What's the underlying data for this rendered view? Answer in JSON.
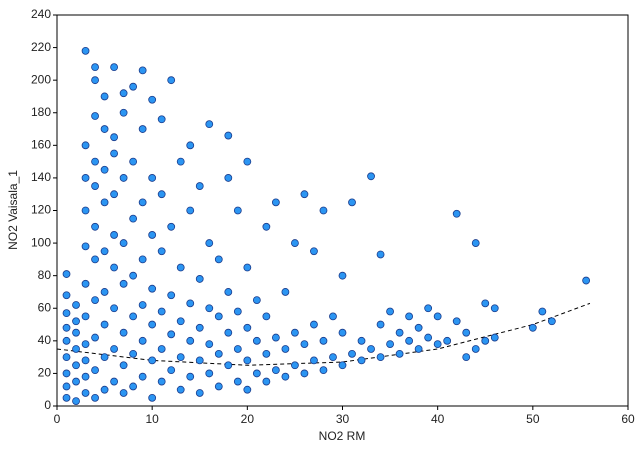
{
  "chart_data": {
    "type": "scatter",
    "x_label": "NO2 RM",
    "y_label": "NO2 Vaisala_1",
    "xlim": [
      0,
      60
    ],
    "ylim": [
      0,
      240
    ],
    "xticks": [
      0,
      10,
      20,
      30,
      40,
      50,
      60
    ],
    "yticks": [
      0,
      20,
      40,
      60,
      80,
      100,
      120,
      140,
      160,
      180,
      200,
      220,
      240
    ],
    "grid": false,
    "series": [
      {
        "color": "#2b95f2",
        "edge_color": "#1b3c8c",
        "x": [
          1,
          1,
          1,
          1,
          1,
          1,
          1,
          1,
          1,
          2,
          2,
          2,
          2,
          2,
          2,
          2,
          3,
          3,
          3,
          3,
          3,
          3,
          3,
          3,
          3,
          3,
          3,
          4,
          4,
          4,
          4,
          4,
          4,
          4,
          4,
          4,
          4,
          4,
          5,
          5,
          5,
          5,
          5,
          5,
          5,
          5,
          5,
          6,
          6,
          6,
          6,
          6,
          6,
          6,
          6,
          6,
          7,
          7,
          7,
          7,
          7,
          7,
          7,
          7,
          8,
          8,
          8,
          8,
          8,
          8,
          8,
          9,
          9,
          9,
          9,
          9,
          9,
          9,
          10,
          10,
          10,
          10,
          10,
          10,
          10,
          11,
          11,
          11,
          11,
          11,
          11,
          12,
          12,
          12,
          12,
          12,
          13,
          13,
          13,
          13,
          13,
          14,
          14,
          14,
          14,
          14,
          15,
          15,
          15,
          15,
          15,
          16,
          16,
          16,
          16,
          16,
          17,
          17,
          17,
          17,
          18,
          18,
          18,
          18,
          18,
          19,
          19,
          19,
          19,
          20,
          20,
          20,
          20,
          20,
          21,
          21,
          21,
          22,
          22,
          22,
          22,
          23,
          23,
          23,
          24,
          24,
          24,
          25,
          25,
          25,
          26,
          26,
          26,
          27,
          27,
          27,
          28,
          28,
          28,
          29,
          29,
          30,
          30,
          30,
          31,
          31,
          32,
          32,
          33,
          33,
          34,
          34,
          34,
          35,
          35,
          36,
          36,
          37,
          37,
          38,
          38,
          39,
          39,
          40,
          40,
          41,
          42,
          42,
          43,
          43,
          44,
          44,
          45,
          45,
          46,
          46,
          50,
          51,
          52,
          55.6
        ],
        "values": [
          5,
          12,
          20,
          30,
          40,
          48,
          57,
          68,
          81,
          3,
          15,
          25,
          35,
          45,
          52,
          62,
          8,
          18,
          28,
          38,
          55,
          75,
          98,
          218,
          120,
          140,
          160,
          5,
          22,
          42,
          65,
          90,
          110,
          135,
          150,
          178,
          200,
          208,
          10,
          30,
          50,
          70,
          95,
          125,
          145,
          170,
          190,
          15,
          35,
          60,
          85,
          105,
          130,
          155,
          165,
          208,
          8,
          25,
          45,
          75,
          100,
          140,
          180,
          192,
          12,
          32,
          55,
          80,
          115,
          150,
          196,
          18,
          40,
          62,
          90,
          125,
          170,
          206,
          5,
          28,
          50,
          72,
          105,
          140,
          188,
          15,
          35,
          58,
          95,
          130,
          176,
          22,
          44,
          68,
          110,
          200,
          10,
          30,
          52,
          85,
          150,
          18,
          40,
          63,
          120,
          160,
          8,
          28,
          48,
          78,
          135,
          20,
          38,
          60,
          100,
          173,
          12,
          32,
          55,
          90,
          25,
          45,
          70,
          140,
          166,
          15,
          35,
          58,
          120,
          10,
          28,
          48,
          85,
          150,
          20,
          40,
          65,
          15,
          32,
          55,
          110,
          22,
          42,
          125,
          18,
          35,
          70,
          25,
          45,
          100,
          20,
          38,
          130,
          28,
          50,
          95,
          22,
          40,
          120,
          30,
          55,
          25,
          45,
          80,
          32,
          125,
          28,
          40,
          35,
          141,
          30,
          50,
          93,
          38,
          58,
          32,
          45,
          40,
          55,
          35,
          48,
          42,
          60,
          38,
          55,
          40,
          52,
          118,
          30,
          45,
          35,
          100,
          40,
          63,
          42,
          60,
          48,
          58,
          52,
          77
        ]
      }
    ],
    "trend": {
      "color": "#000000",
      "x": [
        0,
        10,
        20,
        30,
        40,
        50,
        56
      ],
      "values": [
        35,
        28,
        25,
        27,
        35,
        50,
        63
      ]
    }
  }
}
